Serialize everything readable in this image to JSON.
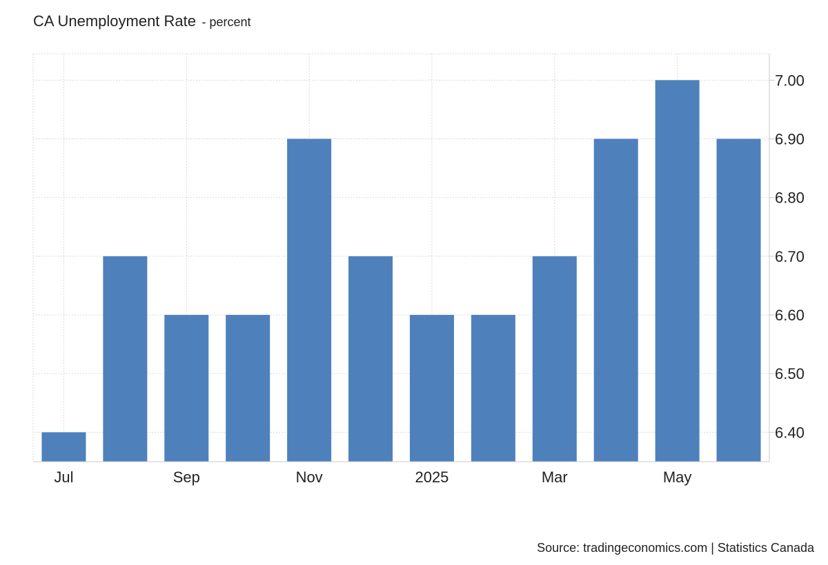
{
  "chart_data": {
    "type": "bar",
    "title": "CA Unemployment Rate",
    "unit": "- percent",
    "categories": [
      "2024-07",
      "2024-08",
      "2024-09",
      "2024-10",
      "2024-11",
      "2024-12",
      "2025-01",
      "2025-02",
      "2025-03",
      "2025-04",
      "2025-05",
      "2025-06"
    ],
    "values": [
      6.4,
      6.7,
      6.6,
      6.6,
      6.9,
      6.7,
      6.6,
      6.6,
      6.7,
      6.9,
      7.0,
      6.9
    ],
    "x_tick_labels": [
      {
        "category": "2024-07",
        "label": "Jul"
      },
      {
        "category": "2024-09",
        "label": "Sep"
      },
      {
        "category": "2024-11",
        "label": "Nov"
      },
      {
        "category": "2025-01",
        "label": "2025"
      },
      {
        "category": "2025-03",
        "label": "Mar"
      },
      {
        "category": "2025-05",
        "label": "May"
      }
    ],
    "y_ticks": [
      6.4,
      6.5,
      6.6,
      6.7,
      6.8,
      6.9,
      7.0
    ],
    "y_tick_labels": [
      "6.40",
      "6.50",
      "6.60",
      "6.70",
      "6.80",
      "6.90",
      "7.00"
    ],
    "ylim": [
      6.35,
      7.045
    ],
    "y_axis_position": "right",
    "grid": true,
    "legend": "none",
    "bar_color": "#4e80bc",
    "source": "Source: tradingeconomics.com | Statistics Canada"
  }
}
